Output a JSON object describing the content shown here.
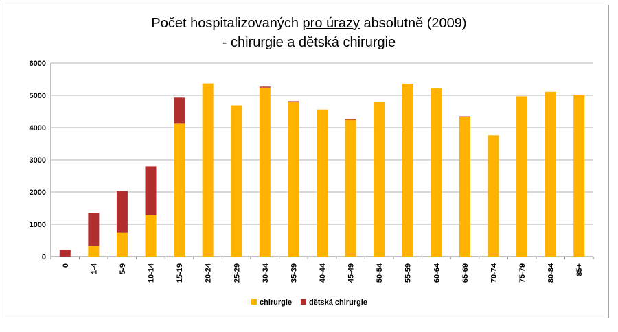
{
  "chart_data": {
    "type": "bar",
    "stacked": true,
    "title_line1_prefix": "Počet  hospitalizovaných ",
    "title_line1_underlined": "pro úrazy",
    "title_line1_suffix": " absolutně (2009)",
    "title_line2": "- chirurgie a dětská chirurgie",
    "xlabel": "",
    "ylabel": "",
    "ylim": [
      0,
      6000
    ],
    "yticks": [
      0,
      1000,
      2000,
      3000,
      4000,
      5000,
      6000
    ],
    "grid": true,
    "legend_position": "bottom",
    "categories": [
      "0",
      "1-4",
      "5-9",
      "10-14",
      "15-19",
      "20-24",
      "25-29",
      "30-34",
      "35-39",
      "40-44",
      "45-49",
      "50-54",
      "55-59",
      "60-64",
      "65-69",
      "70-74",
      "75-79",
      "80-84",
      "85+"
    ],
    "series": [
      {
        "name": "chirurgie",
        "color": "#ffb300",
        "values": [
          0,
          340,
          750,
          1280,
          4120,
          5370,
          4690,
          5240,
          4790,
          4560,
          4240,
          4790,
          5360,
          5220,
          4320,
          3760,
          4970,
          5110,
          5010
        ]
      },
      {
        "name": "dětská chirurgie",
        "color": "#b22f2f",
        "values": [
          210,
          1020,
          1280,
          1520,
          810,
          0,
          0,
          30,
          30,
          0,
          30,
          0,
          0,
          0,
          30,
          0,
          0,
          0,
          10
        ]
      }
    ]
  }
}
